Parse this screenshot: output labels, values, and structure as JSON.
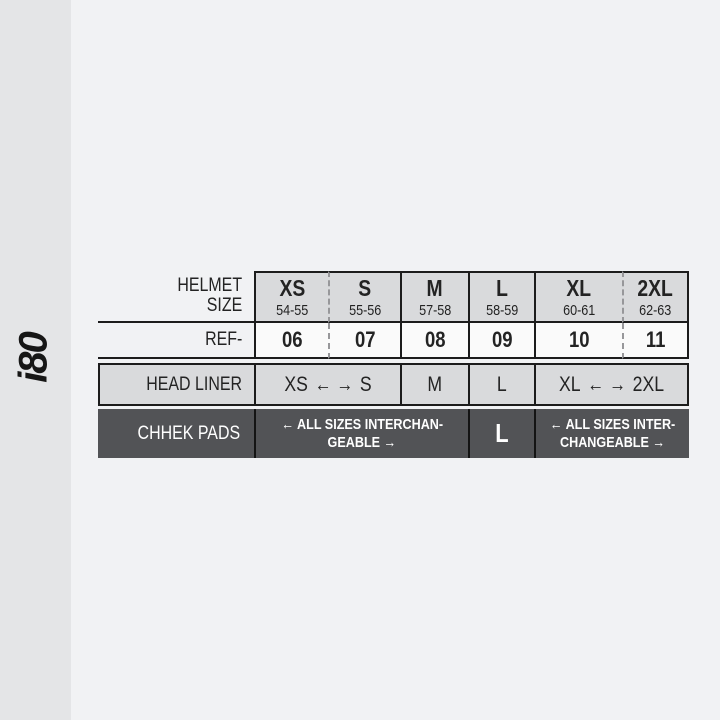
{
  "page": {
    "background": "#f1f2f4",
    "left_strip_background": "#e4e5e7"
  },
  "logo": {
    "text": "i80"
  },
  "icons": {
    "arrow_left": "←",
    "arrow_right": "→"
  },
  "table": {
    "header": {
      "label_line1": "HELMET",
      "label_line2": "SIZE",
      "columns": [
        {
          "size": "XS",
          "range": "54-55"
        },
        {
          "size": "S",
          "range": "55-56"
        },
        {
          "size": "M",
          "range": "57-58"
        },
        {
          "size": "L",
          "range": "58-59"
        },
        {
          "size": "XL",
          "range": "60-61"
        },
        {
          "size": "2XL",
          "range": "62-63"
        }
      ]
    },
    "ref_row": {
      "label": "REF-",
      "values": [
        "06",
        "07",
        "08",
        "09",
        "10",
        "11"
      ]
    },
    "head_liner": {
      "label": "HEAD LINER",
      "span_a_left": "XS",
      "span_a_right": "S",
      "cell_m": "M",
      "cell_l": "L",
      "span_b_left": "XL",
      "span_b_right": "2XL"
    },
    "cheek_pads": {
      "label": "CHHEK PADS",
      "span_a_line1": "← ALL SIZES INTERCHAN-",
      "span_a_line2": "GEABLE →",
      "cell_l": "L",
      "span_b_line1": "← ALL SIZES INTER-",
      "span_b_line2": "CHANGEABLE →"
    }
  },
  "colors": {
    "cell_gray": "#d9dadc",
    "cell_white": "#fafafa",
    "dark_row": "#525356",
    "border": "#1c1c1c",
    "dashed_border": "#97979a",
    "text": "#232323",
    "text_light": "#ffffff"
  },
  "chart_data": {
    "type": "table",
    "title": "i80 helmet sizing chart",
    "columns": [
      "HELMET SIZE",
      "XS 54-55",
      "S 55-56",
      "M 57-58",
      "L 58-59",
      "XL 60-61",
      "2XL 62-63"
    ],
    "rows": [
      [
        "REF-",
        "06",
        "07",
        "08",
        "09",
        "10",
        "11"
      ],
      [
        "HEAD LINER",
        "XS ← → S",
        "XS ← → S",
        "M",
        "L",
        "XL ← → 2XL",
        "XL ← → 2XL"
      ],
      [
        "CHHEK PADS",
        "← ALL SIZES INTERCHANGEABLE →",
        "← ALL SIZES INTERCHANGEABLE →",
        "← ALL SIZES INTERCHANGEABLE →",
        "L",
        "← ALL SIZES INTERCHANGEABLE →",
        "← ALL SIZES INTERCHANGEABLE →"
      ]
    ],
    "layout_hints": {
      "dashed_separators": [
        "XS|S",
        "XL|2XL"
      ],
      "dark_row": "CHHEK PADS"
    }
  }
}
